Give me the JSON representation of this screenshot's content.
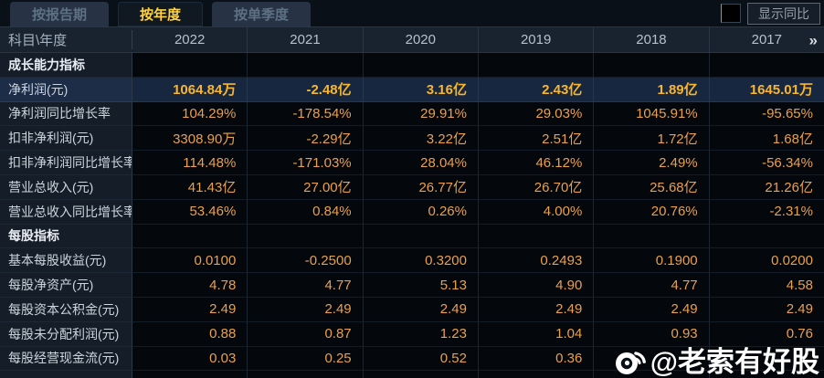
{
  "tabs": [
    {
      "label": "按报告期",
      "active": false
    },
    {
      "label": "按年度",
      "active": true
    },
    {
      "label": "按单季度",
      "active": false
    }
  ],
  "controls": {
    "show_yoy_label": "显示同比",
    "checkbox_checked": false
  },
  "table": {
    "corner_header": "科目\\年度",
    "years": [
      "2022",
      "2021",
      "2020",
      "2019",
      "2018",
      "2017"
    ],
    "more_icon": "»",
    "rows": [
      {
        "type": "section",
        "label": "成长能力指标",
        "values": [
          "",
          "",
          "",
          "",
          "",
          ""
        ]
      },
      {
        "type": "data",
        "highlight": true,
        "label": "净利润(元)",
        "values": [
          "1064.84万",
          "-2.48亿",
          "3.16亿",
          "2.43亿",
          "1.89亿",
          "1645.01万"
        ]
      },
      {
        "type": "data",
        "label": "净利润同比增长率",
        "values": [
          "104.29%",
          "-178.54%",
          "29.91%",
          "29.03%",
          "1045.91%",
          "-95.65%"
        ]
      },
      {
        "type": "data",
        "label": "扣非净利润(元)",
        "values": [
          "3308.90万",
          "-2.29亿",
          "3.22亿",
          "2.51亿",
          "1.72亿",
          "1.68亿"
        ]
      },
      {
        "type": "data",
        "label": "扣非净利润同比增长率",
        "values": [
          "114.48%",
          "-171.03%",
          "28.04%",
          "46.12%",
          "2.49%",
          "-56.34%"
        ]
      },
      {
        "type": "data",
        "label": "营业总收入(元)",
        "values": [
          "41.43亿",
          "27.00亿",
          "26.77亿",
          "26.70亿",
          "25.68亿",
          "21.26亿"
        ]
      },
      {
        "type": "data",
        "label": "营业总收入同比增长率",
        "values": [
          "53.46%",
          "0.84%",
          "0.26%",
          "4.00%",
          "20.76%",
          "-2.31%"
        ]
      },
      {
        "type": "section",
        "label": "每股指标",
        "values": [
          "",
          "",
          "",
          "",
          "",
          ""
        ]
      },
      {
        "type": "data",
        "label": "基本每股收益(元)",
        "values": [
          "0.0100",
          "-0.2500",
          "0.3200",
          "0.2493",
          "0.1900",
          "0.0200"
        ]
      },
      {
        "type": "data",
        "label": "每股净资产(元)",
        "values": [
          "4.78",
          "4.77",
          "5.13",
          "4.90",
          "4.77",
          "4.58"
        ]
      },
      {
        "type": "data",
        "label": "每股资本公积金(元)",
        "values": [
          "2.49",
          "2.49",
          "2.49",
          "2.49",
          "2.49",
          "2.49"
        ]
      },
      {
        "type": "data",
        "label": "每股未分配利润(元)",
        "values": [
          "0.88",
          "0.87",
          "1.23",
          "1.04",
          "0.93",
          "0.76"
        ]
      },
      {
        "type": "data",
        "label": "每股经营现金流(元)",
        "values": [
          "0.03",
          "0.25",
          "0.52",
          "0.36",
          "",
          ""
        ]
      },
      {
        "type": "data",
        "label": "",
        "values": [
          "",
          "",
          "",
          "",
          "",
          ""
        ]
      }
    ]
  },
  "watermark": {
    "text": "@老索有好股",
    "icon": "weibo-logo"
  },
  "colors": {
    "accent_gold": "#ffd23e",
    "value_orange": "#e9a14d",
    "highlight_value": "#f7b62b",
    "highlight_row_bg": "#182740",
    "label_col_bg": "#151d28",
    "header_row_bg": "#19232f",
    "cell_bg": "#04070b"
  }
}
